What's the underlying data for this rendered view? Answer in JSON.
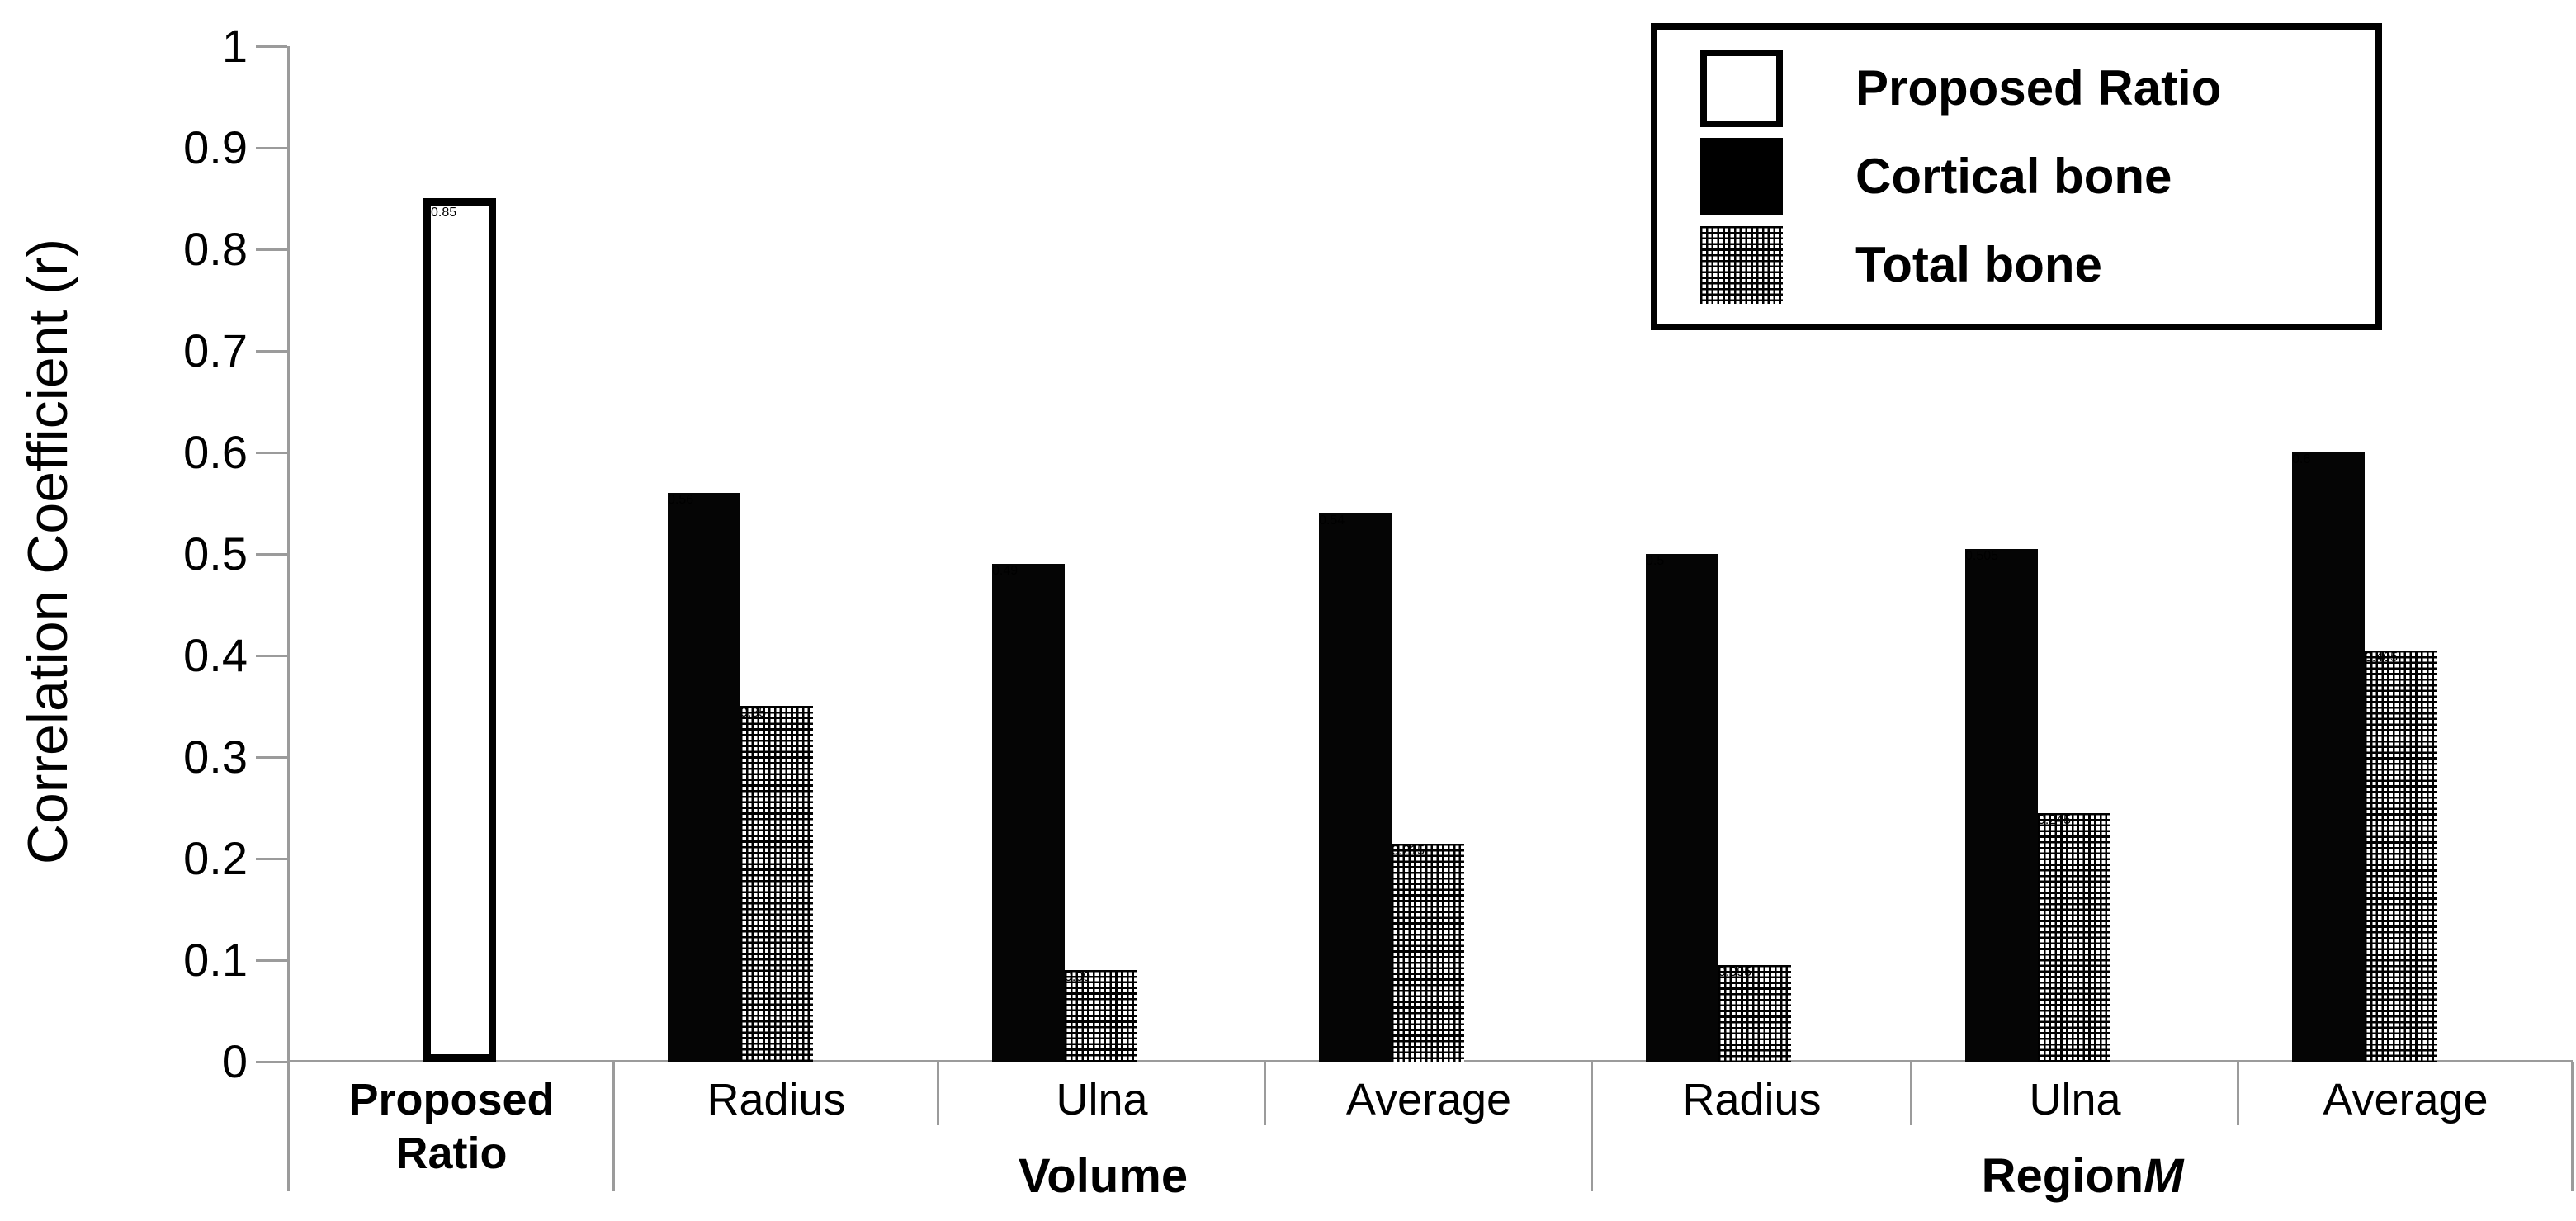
{
  "chart_data": {
    "type": "bar",
    "title": "",
    "ylabel": "Correlation Coefficient (r)",
    "xlabel": "",
    "ylim": [
      0,
      1
    ],
    "ytick_labels": [
      "0",
      "0.1",
      "0.2",
      "0.3",
      "0.4",
      "0.5",
      "0.6",
      "0.7",
      "0.8",
      "0.9",
      "1"
    ],
    "grid": false,
    "legend_position": "top-right",
    "series": [
      "Proposed Ratio",
      "Cortical bone",
      "Total bone"
    ],
    "groups": [
      {
        "label": "Proposed Ratio",
        "label_italic": "",
        "categories": [
          {
            "label": "Proposed Ratio",
            "bold": true,
            "bars": [
              {
                "series": "Proposed Ratio",
                "style": "white-outline",
                "value": 0.85
              }
            ]
          }
        ]
      },
      {
        "label": "Volume",
        "label_italic": "",
        "categories": [
          {
            "label": "Radius",
            "bold": false,
            "bars": [
              {
                "series": "Cortical bone",
                "style": "solid-black",
                "value": 0.56
              },
              {
                "series": "Total bone",
                "style": "crosshatch",
                "value": 0.35
              }
            ]
          },
          {
            "label": "Ulna",
            "bold": false,
            "bars": [
              {
                "series": "Cortical bone",
                "style": "solid-black",
                "value": 0.49
              },
              {
                "series": "Total bone",
                "style": "crosshatch",
                "value": 0.09
              }
            ]
          },
          {
            "label": "Average",
            "bold": false,
            "bars": [
              {
                "series": "Cortical bone",
                "style": "solid-black",
                "value": 0.54
              },
              {
                "series": "Total bone",
                "style": "crosshatch",
                "value": 0.215
              }
            ]
          }
        ]
      },
      {
        "label": "Region",
        "label_italic": "M",
        "categories": [
          {
            "label": "Radius",
            "bold": false,
            "bars": [
              {
                "series": "Cortical bone",
                "style": "solid-black",
                "value": 0.5
              },
              {
                "series": "Total bone",
                "style": "crosshatch",
                "value": 0.095
              }
            ]
          },
          {
            "label": "Ulna",
            "bold": false,
            "bars": [
              {
                "series": "Cortical bone",
                "style": "solid-black",
                "value": 0.505
              },
              {
                "series": "Total bone",
                "style": "crosshatch",
                "value": 0.245
              }
            ]
          },
          {
            "label": "Average",
            "bold": false,
            "bars": [
              {
                "series": "Cortical bone",
                "style": "solid-black",
                "value": 0.6
              },
              {
                "series": "Total bone",
                "style": "crosshatch",
                "value": 0.405
              }
            ]
          }
        ]
      }
    ],
    "legend": {
      "entries": [
        {
          "label": "Proposed Ratio",
          "swatch": "white-outline"
        },
        {
          "label": "Cortical bone",
          "swatch": "solid-black"
        },
        {
          "label": "Total bone",
          "swatch": "crosshatch"
        }
      ]
    },
    "colors": {
      "bar_fill": "#000000",
      "bar_outline_fill": "#ffffff",
      "hatch": "#000000",
      "axis_line": "#9b9b9b",
      "text": "#000000",
      "background": "#ffffff"
    }
  }
}
